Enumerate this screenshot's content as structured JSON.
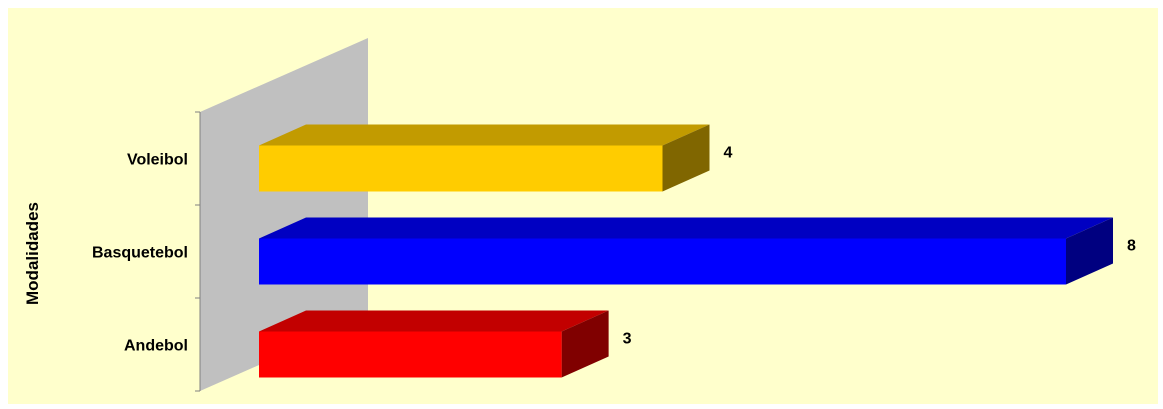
{
  "chart_data": {
    "type": "bar",
    "orientation": "horizontal",
    "three_d": true,
    "categories": [
      "Andebol",
      "Basquetebol",
      "Voleibol"
    ],
    "values": [
      3,
      8,
      4
    ],
    "colors": [
      "#ff0000",
      "#0000ff",
      "#ffcc00"
    ],
    "ylabel": "Modalidades",
    "xlim": [
      0,
      8
    ],
    "grid": false,
    "legend": "none",
    "data_labels": [
      "3",
      "8",
      "4"
    ]
  },
  "colors": {
    "plot_background": "#ffffcc",
    "wall": "#c0c0c0",
    "axis": "#808080"
  }
}
